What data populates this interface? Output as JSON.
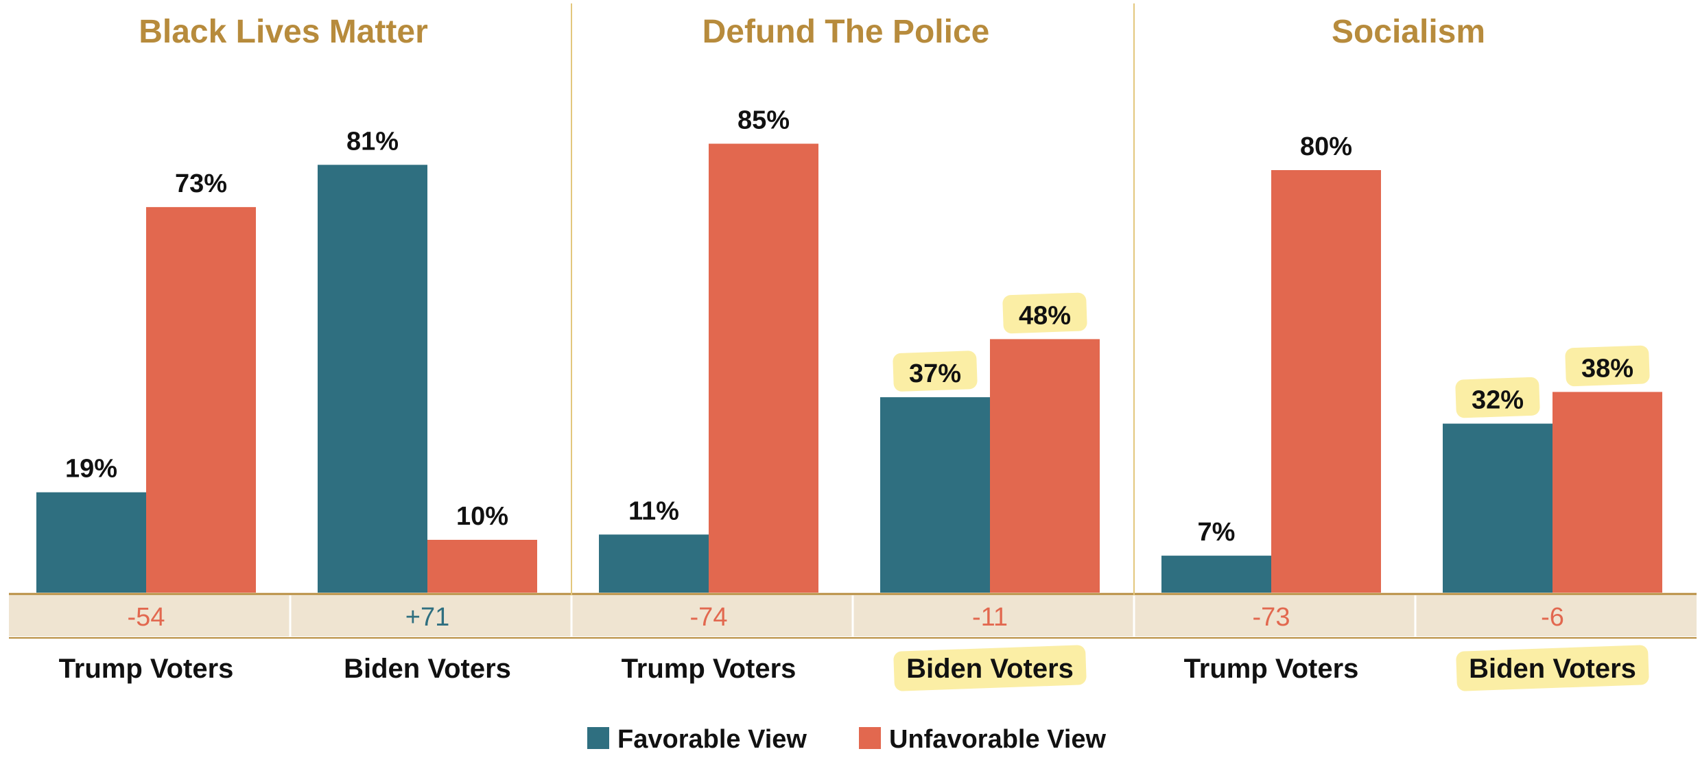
{
  "colors": {
    "favorable": "#2f6f80",
    "unfavorable": "#e2684f",
    "title": "#b78b3c",
    "divider": "#e3c77d",
    "net_band": "#efe4d1",
    "net_negative": "#e2684f",
    "net_positive": "#2f6f80",
    "highlight": "#fbeea5"
  },
  "legend": [
    {
      "key": "favorable",
      "label": "Favorable View"
    },
    {
      "key": "unfavorable",
      "label": "Unfavorable View"
    }
  ],
  "chart_data": {
    "type": "bar",
    "ylim": [
      0,
      100
    ],
    "grid": false,
    "legend_position": "bottom-center",
    "panels": [
      {
        "title": "Black Lives Matter",
        "groups": [
          {
            "label": "Trump Voters",
            "favorable": 19,
            "unfavorable": 73,
            "favorable_label": "19%",
            "unfavorable_label": "73%",
            "net": "-54",
            "net_sign": "negative",
            "highlight": false
          },
          {
            "label": "Biden Voters",
            "favorable": 81,
            "unfavorable": 10,
            "favorable_label": "81%",
            "unfavorable_label": "10%",
            "net": "+71",
            "net_sign": "positive",
            "highlight": false
          }
        ]
      },
      {
        "title": "Defund The Police",
        "groups": [
          {
            "label": "Trump Voters",
            "favorable": 11,
            "unfavorable": 85,
            "favorable_label": "11%",
            "unfavorable_label": "85%",
            "net": "-74",
            "net_sign": "negative",
            "highlight": false
          },
          {
            "label": "Biden Voters",
            "favorable": 37,
            "unfavorable": 48,
            "favorable_label": "37%",
            "unfavorable_label": "48%",
            "net": "-11",
            "net_sign": "negative",
            "highlight": true
          }
        ]
      },
      {
        "title": "Socialism",
        "groups": [
          {
            "label": "Trump Voters",
            "favorable": 7,
            "unfavorable": 80,
            "favorable_label": "7%",
            "unfavorable_label": "80%",
            "net": "-73",
            "net_sign": "negative",
            "highlight": false
          },
          {
            "label": "Biden Voters",
            "favorable": 32,
            "unfavorable": 38,
            "favorable_label": "32%",
            "unfavorable_label": "38%",
            "net": "-6",
            "net_sign": "negative",
            "highlight": true
          }
        ]
      }
    ]
  }
}
